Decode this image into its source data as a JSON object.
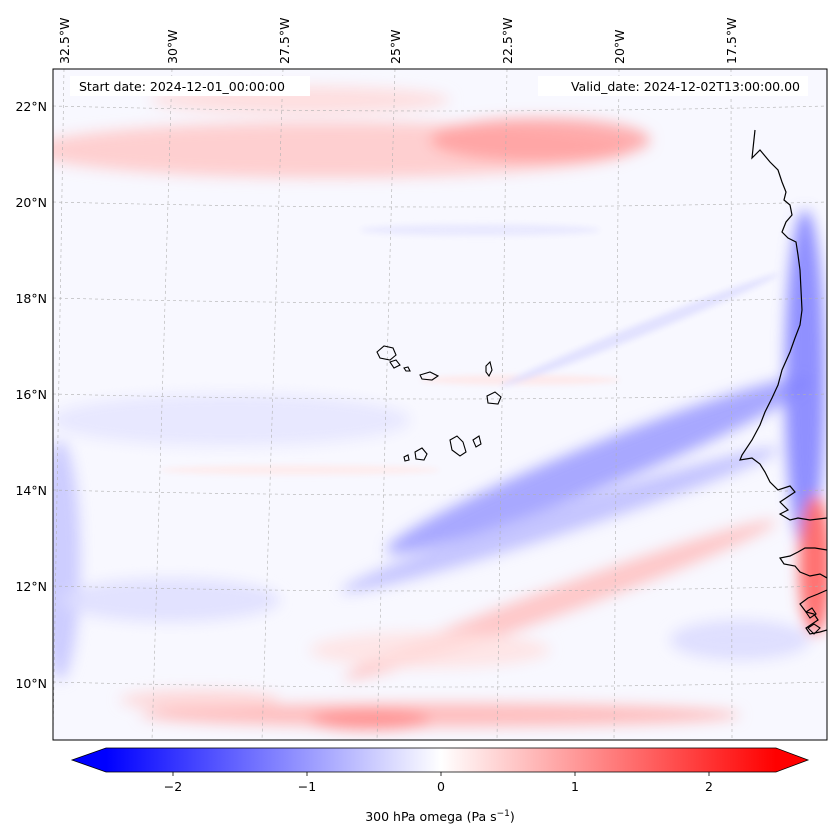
{
  "map": {
    "start_date_label": "Start date: 2024-12-01_00:00:00",
    "valid_date_label": "Valid_date: 2024-12-02T13:00:00.00",
    "lon_ticks": [
      "32.5°W",
      "30°W",
      "27.5°W",
      "25°W",
      "22.5°W",
      "20°W",
      "17.5°W"
    ],
    "lat_ticks": [
      "22°N",
      "20°N",
      "18°N",
      "16°N",
      "14°N",
      "12°N",
      "10°N"
    ],
    "gridline_color": "#b0b0b0",
    "coastline_color": "#000000",
    "regions": {
      "west_africa_coast": "coastline",
      "cape_verde_islands": "islands"
    }
  },
  "chart_data": {
    "type": "heatmap",
    "variable": "300 hPa omega",
    "units": "Pa s^-1",
    "colormap": "bwr",
    "vmin": -2.5,
    "vmax": 2.5,
    "extend": "both",
    "lon_range": [
      -33.0,
      -15.2
    ],
    "lat_range": [
      8.8,
      22.8
    ],
    "features": [
      {
        "name": "northern positive band",
        "lat": 21.2,
        "value": 0.6
      },
      {
        "name": "Saharan coast descent near 21N",
        "lat": 21.2,
        "lon": -21.5,
        "value": 1.2
      },
      {
        "name": "northeast-oriented negative band",
        "lat": 13.3,
        "value": -0.9
      },
      {
        "name": "coastal negative strip",
        "lon": -15.8,
        "value": -1.3
      },
      {
        "name": "Guinea coast positive",
        "lat": 12.0,
        "lon": -15.5,
        "value": 2.0
      },
      {
        "name": "southern positive band",
        "lat": 9.3,
        "value": 1.1
      }
    ]
  },
  "colorbar": {
    "ticks": [
      "−2",
      "−1",
      "0",
      "1",
      "2"
    ],
    "tick_values": [
      -2,
      -1,
      0,
      1,
      2
    ],
    "label_prefix": "300 hPa omega (Pa s",
    "label_exponent": "−1",
    "label_suffix": ")"
  }
}
